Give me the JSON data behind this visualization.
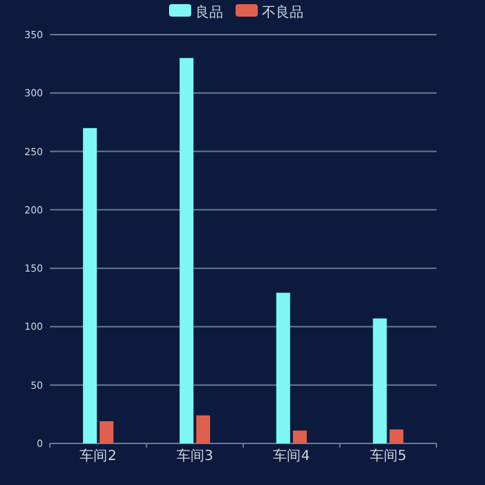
{
  "chart_data": {
    "type": "bar",
    "categories": [
      "车间2",
      "车间3",
      "车间4",
      "车间5"
    ],
    "series": [
      {
        "name": "良品",
        "color": "#7ef7f5",
        "values": [
          270,
          330,
          129,
          107
        ]
      },
      {
        "name": "不良品",
        "color": "#e06050",
        "values": [
          19,
          24,
          11,
          12
        ]
      }
    ],
    "ylim": [
      0,
      350
    ],
    "yticks": [
      0,
      50,
      100,
      150,
      200,
      250,
      300,
      350
    ],
    "grid": "y",
    "legend": "top"
  }
}
